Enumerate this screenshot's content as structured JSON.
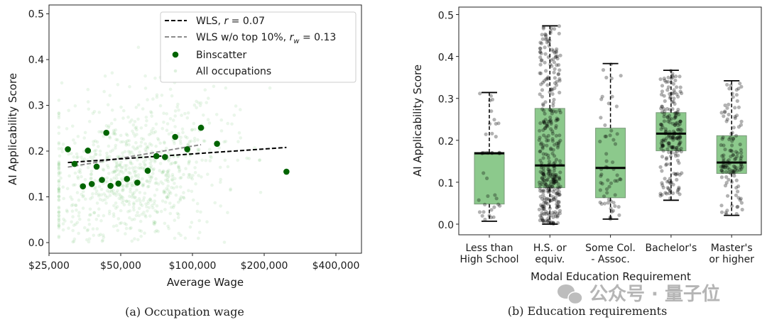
{
  "chart_data": [
    {
      "type": "scatter",
      "caption": "(a) Occupation wage",
      "xlabel": "Average Wage",
      "ylabel": "AI Applicability Score",
      "xscale": "log2",
      "xlim": [
        25000,
        513000
      ],
      "ylim": [
        -0.023,
        0.52
      ],
      "xticks": [
        25000,
        50000,
        100000,
        200000,
        400000
      ],
      "xtick_labels": [
        "$25,000",
        "$50,000",
        "$100,000",
        "$200,000",
        "$400,000"
      ],
      "yticks": [
        0.0,
        0.1,
        0.2,
        0.3,
        0.4,
        0.5
      ],
      "ytick_labels": [
        "0.0",
        "0.1",
        "0.2",
        "0.3",
        "0.4",
        "0.5"
      ],
      "legend_position": "top-right",
      "legend": [
        {
          "prefix": "WLS, ",
          "var": "r",
          "sub": "",
          "suffix": " = 0.07",
          "style": "black-dashed"
        },
        {
          "prefix": "WLS w/o top 10%, ",
          "var": "r",
          "sub": "w",
          "suffix": " = 0.13",
          "style": "grey-dashed"
        },
        {
          "prefix": "Binscatter",
          "var": "",
          "sub": "",
          "suffix": "",
          "style": "green-dot"
        },
        {
          "prefix": "All occupations",
          "var": "",
          "sub": "",
          "suffix": "",
          "style": "faint-green-dot"
        }
      ],
      "series": [
        {
          "name": "Binscatter",
          "color": "#006400",
          "x": [
            30000,
            32000,
            34700,
            36400,
            37800,
            39600,
            41700,
            43500,
            45300,
            48900,
            53100,
            58700,
            64900,
            70600,
            76700,
            84600,
            95100,
            108600,
            126800,
            248000
          ],
          "y": [
            0.204,
            0.172,
            0.123,
            0.201,
            0.128,
            0.166,
            0.137,
            0.24,
            0.124,
            0.129,
            0.139,
            0.131,
            0.157,
            0.189,
            0.187,
            0.231,
            0.204,
            0.251,
            0.216,
            0.155
          ]
        },
        {
          "name": "WLS",
          "color": "#000000",
          "x": [
            30000,
            248000
          ],
          "y": [
            0.175,
            0.208
          ]
        },
        {
          "name": "WLS w/o top 10%",
          "color": "#8c8c8c",
          "x": [
            30000,
            108600
          ],
          "y": [
            0.165,
            0.214
          ]
        }
      ],
      "background_scatter": {
        "name": "All occupations",
        "color": "#5cb85c"
      }
    },
    {
      "type": "box",
      "caption": "(b) Education requirements",
      "xlabel": "Modal Education Requirement",
      "ylabel": "AI Applicability Score",
      "ylim": [
        -0.025,
        0.518
      ],
      "yticks": [
        0.0,
        0.1,
        0.2,
        0.3,
        0.4,
        0.5
      ],
      "ytick_labels": [
        "0.0",
        "0.1",
        "0.2",
        "0.3",
        "0.4",
        "0.5"
      ],
      "categories": [
        [
          "Less than",
          "High School"
        ],
        [
          "H.S. or",
          "equiv."
        ],
        [
          "Some Col.",
          "- Assoc."
        ],
        [
          "Bachelor's",
          ""
        ],
        [
          "Master's",
          "or higher"
        ]
      ],
      "box_color": "#8cc98c",
      "boxes": [
        {
          "whisker_low": 0.007,
          "q1": 0.048,
          "median": 0.169,
          "q3": 0.171,
          "whisker_high": 0.314,
          "n_points": 40
        },
        {
          "whisker_low": 0.0,
          "q1": 0.087,
          "median": 0.14,
          "q3": 0.276,
          "whisker_high": 0.473,
          "n_points": 350
        },
        {
          "whisker_low": 0.012,
          "q1": 0.063,
          "median": 0.134,
          "q3": 0.229,
          "whisker_high": 0.383,
          "n_points": 60
        },
        {
          "whisker_low": 0.057,
          "q1": 0.175,
          "median": 0.216,
          "q3": 0.266,
          "whisker_high": 0.367,
          "n_points": 200
        },
        {
          "whisker_low": 0.021,
          "q1": 0.121,
          "median": 0.147,
          "q3": 0.211,
          "whisker_high": 0.342,
          "n_points": 130
        }
      ]
    }
  ],
  "watermark": {
    "text": "公众号 · 量子位"
  }
}
